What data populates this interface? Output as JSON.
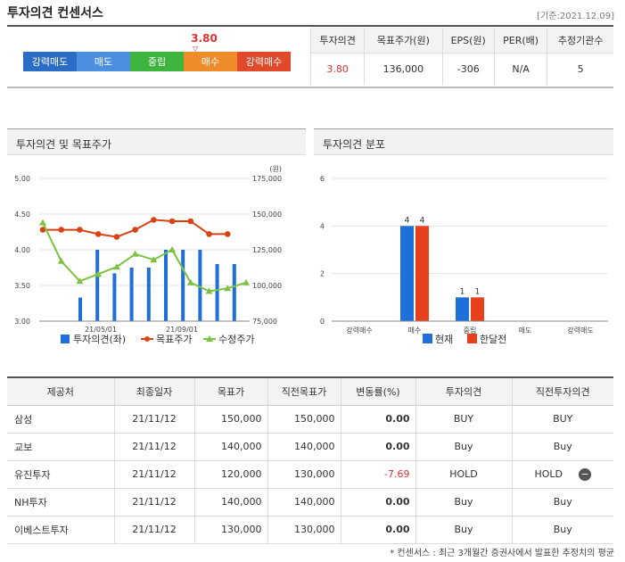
{
  "header": {
    "title": "투자의견 컨센서스",
    "base_date": "[기준:2021.12.09]"
  },
  "scale": {
    "current_value": "3.80",
    "marker": "▽",
    "segments": [
      {
        "label": "강력매도",
        "color": "#2b6cc4"
      },
      {
        "label": "매도",
        "color": "#4a8fe0"
      },
      {
        "label": "중립",
        "color": "#3db43d"
      },
      {
        "label": "매수",
        "color": "#f08b2a"
      },
      {
        "label": "강력매수",
        "color": "#e04a2a"
      }
    ]
  },
  "summary": {
    "headers": [
      "투자의견",
      "목표주가(원)",
      "EPS(원)",
      "PER(배)",
      "추정기관수"
    ],
    "values": [
      "3.80",
      "136,000",
      "-306",
      "N/A",
      "5"
    ]
  },
  "panels": {
    "left_title": "투자의견 및 목표주가",
    "right_title": "투자의견 분포"
  },
  "chart_data": [
    {
      "type": "bar+line",
      "title": "투자의견 및 목표주가",
      "y_left": {
        "ticks": [
          "5.00",
          "4.50",
          "4.00",
          "3.50",
          "3.00"
        ],
        "range": [
          3.0,
          5.0
        ]
      },
      "y_right": {
        "unit": "(원)",
        "ticks": [
          "175,000",
          "150,000",
          "125,000",
          "100,000",
          "75,000"
        ],
        "range": [
          75000,
          175000
        ]
      },
      "x_ticks": [
        "21/05/01",
        "21/09/01"
      ],
      "series": [
        {
          "name": "투자의견(좌)",
          "kind": "bar",
          "color": "#1e6fd9",
          "values": [
            3.33,
            4.0,
            3.67,
            3.75,
            3.75,
            4.0,
            4.0,
            4.0,
            3.8,
            3.8
          ]
        },
        {
          "name": "목표주가",
          "kind": "line",
          "color": "#d84315",
          "values": [
            139000,
            139000,
            139000,
            136000,
            134000,
            139000,
            146000,
            145000,
            145000,
            136000,
            136000
          ]
        },
        {
          "name": "수정주가",
          "kind": "line",
          "color": "#7dc242",
          "values": [
            144000,
            117000,
            103000,
            108000,
            113000,
            122000,
            118000,
            125000,
            102000,
            96000,
            98000,
            102000
          ]
        }
      ]
    },
    {
      "type": "bar",
      "title": "투자의견 분포",
      "categories": [
        "강력매수",
        "매수",
        "중립",
        "매도",
        "강력매도"
      ],
      "y_ticks": [
        "6",
        "4",
        "2",
        "0"
      ],
      "ylim": [
        0,
        6
      ],
      "series": [
        {
          "name": "현재",
          "color": "#1e6fd9",
          "values": [
            0,
            4,
            1,
            0,
            0
          ]
        },
        {
          "name": "한달전",
          "color": "#e8401c",
          "values": [
            0,
            4,
            1,
            0,
            0
          ]
        }
      ]
    }
  ],
  "opinions": {
    "headers": [
      "제공처",
      "최종일자",
      "목표가",
      "직전목표가",
      "변동률(%)",
      "투자의견",
      "직전투자의견"
    ],
    "rows": [
      {
        "provider": "삼성",
        "date": "21/11/12",
        "target": "150,000",
        "prev_target": "150,000",
        "change": "0.00",
        "opinion": "BUY",
        "prev_opinion": "BUY"
      },
      {
        "provider": "교보",
        "date": "21/11/12",
        "target": "140,000",
        "prev_target": "140,000",
        "change": "0.00",
        "opinion": "Buy",
        "prev_opinion": "Buy"
      },
      {
        "provider": "유진투자",
        "date": "21/11/12",
        "target": "120,000",
        "prev_target": "130,000",
        "change": "-7.69",
        "opinion": "HOLD",
        "prev_opinion": "HOLD"
      },
      {
        "provider": "NH투자",
        "date": "21/11/12",
        "target": "140,000",
        "prev_target": "140,000",
        "change": "0.00",
        "opinion": "Buy",
        "prev_opinion": "Buy"
      },
      {
        "provider": "이베스트투자",
        "date": "21/11/12",
        "target": "130,000",
        "prev_target": "130,000",
        "change": "0.00",
        "opinion": "Buy",
        "prev_opinion": "Buy"
      }
    ],
    "collapse_icon": "minus-circle-icon",
    "collapse_symbol": "−"
  },
  "footnote": "* 컨센서스 : 최근 3개월간 증권사에서 발표한 추정치의 평균"
}
